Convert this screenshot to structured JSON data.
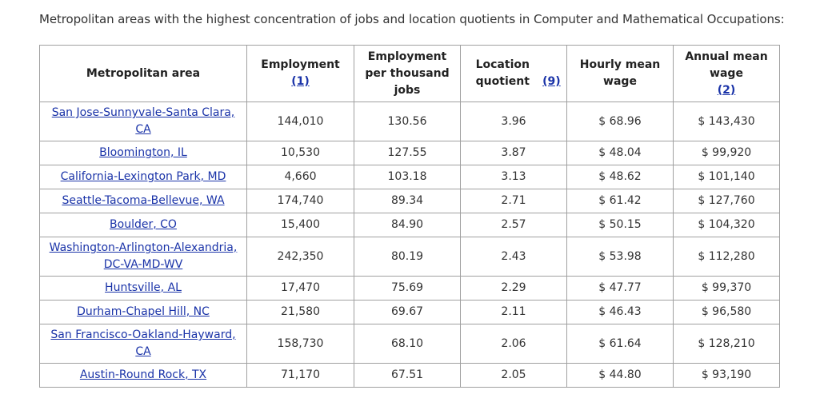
{
  "caption": "Metropolitan areas with the highest concentration of jobs and location quotients in Computer and Mathematical Occupations:",
  "headers": {
    "area": "Metropolitan area",
    "employment": "Employment",
    "employment_ref": "(1)",
    "per_thousand": "Employment per thousand jobs",
    "lq": "Location quotient",
    "lq_ref": "(9)",
    "hourly": "Hourly mean wage",
    "annual": "Annual mean wage",
    "annual_ref": "(2)"
  },
  "rows": [
    {
      "area": "San Jose-Sunnyvale-Santa Clara, CA",
      "employment": "144,010",
      "per_thousand": "130.56",
      "lq": "3.96",
      "hourly": "$ 68.96",
      "annual": "$ 143,430"
    },
    {
      "area": "Bloomington, IL",
      "employment": "10,530",
      "per_thousand": "127.55",
      "lq": "3.87",
      "hourly": "$ 48.04",
      "annual": "$ 99,920"
    },
    {
      "area": "California-Lexington Park, MD",
      "employment": "4,660",
      "per_thousand": "103.18",
      "lq": "3.13",
      "hourly": "$ 48.62",
      "annual": "$ 101,140"
    },
    {
      "area": "Seattle-Tacoma-Bellevue, WA",
      "employment": "174,740",
      "per_thousand": "89.34",
      "lq": "2.71",
      "hourly": "$ 61.42",
      "annual": "$ 127,760"
    },
    {
      "area": "Boulder, CO",
      "employment": "15,400",
      "per_thousand": "84.90",
      "lq": "2.57",
      "hourly": "$ 50.15",
      "annual": "$ 104,320"
    },
    {
      "area": "Washington-Arlington-Alexandria, DC-VA-MD-WV",
      "employment": "242,350",
      "per_thousand": "80.19",
      "lq": "2.43",
      "hourly": "$ 53.98",
      "annual": "$ 112,280"
    },
    {
      "area": "Huntsville, AL",
      "employment": "17,470",
      "per_thousand": "75.69",
      "lq": "2.29",
      "hourly": "$ 47.77",
      "annual": "$ 99,370"
    },
    {
      "area": "Durham-Chapel Hill, NC",
      "employment": "21,580",
      "per_thousand": "69.67",
      "lq": "2.11",
      "hourly": "$ 46.43",
      "annual": "$ 96,580"
    },
    {
      "area": "San Francisco-Oakland-Hayward, CA",
      "employment": "158,730",
      "per_thousand": "68.10",
      "lq": "2.06",
      "hourly": "$ 61.64",
      "annual": "$ 128,210"
    },
    {
      "area": "Austin-Round Rock, TX",
      "employment": "71,170",
      "per_thousand": "67.51",
      "lq": "2.05",
      "hourly": "$ 44.80",
      "annual": "$ 93,190"
    }
  ]
}
